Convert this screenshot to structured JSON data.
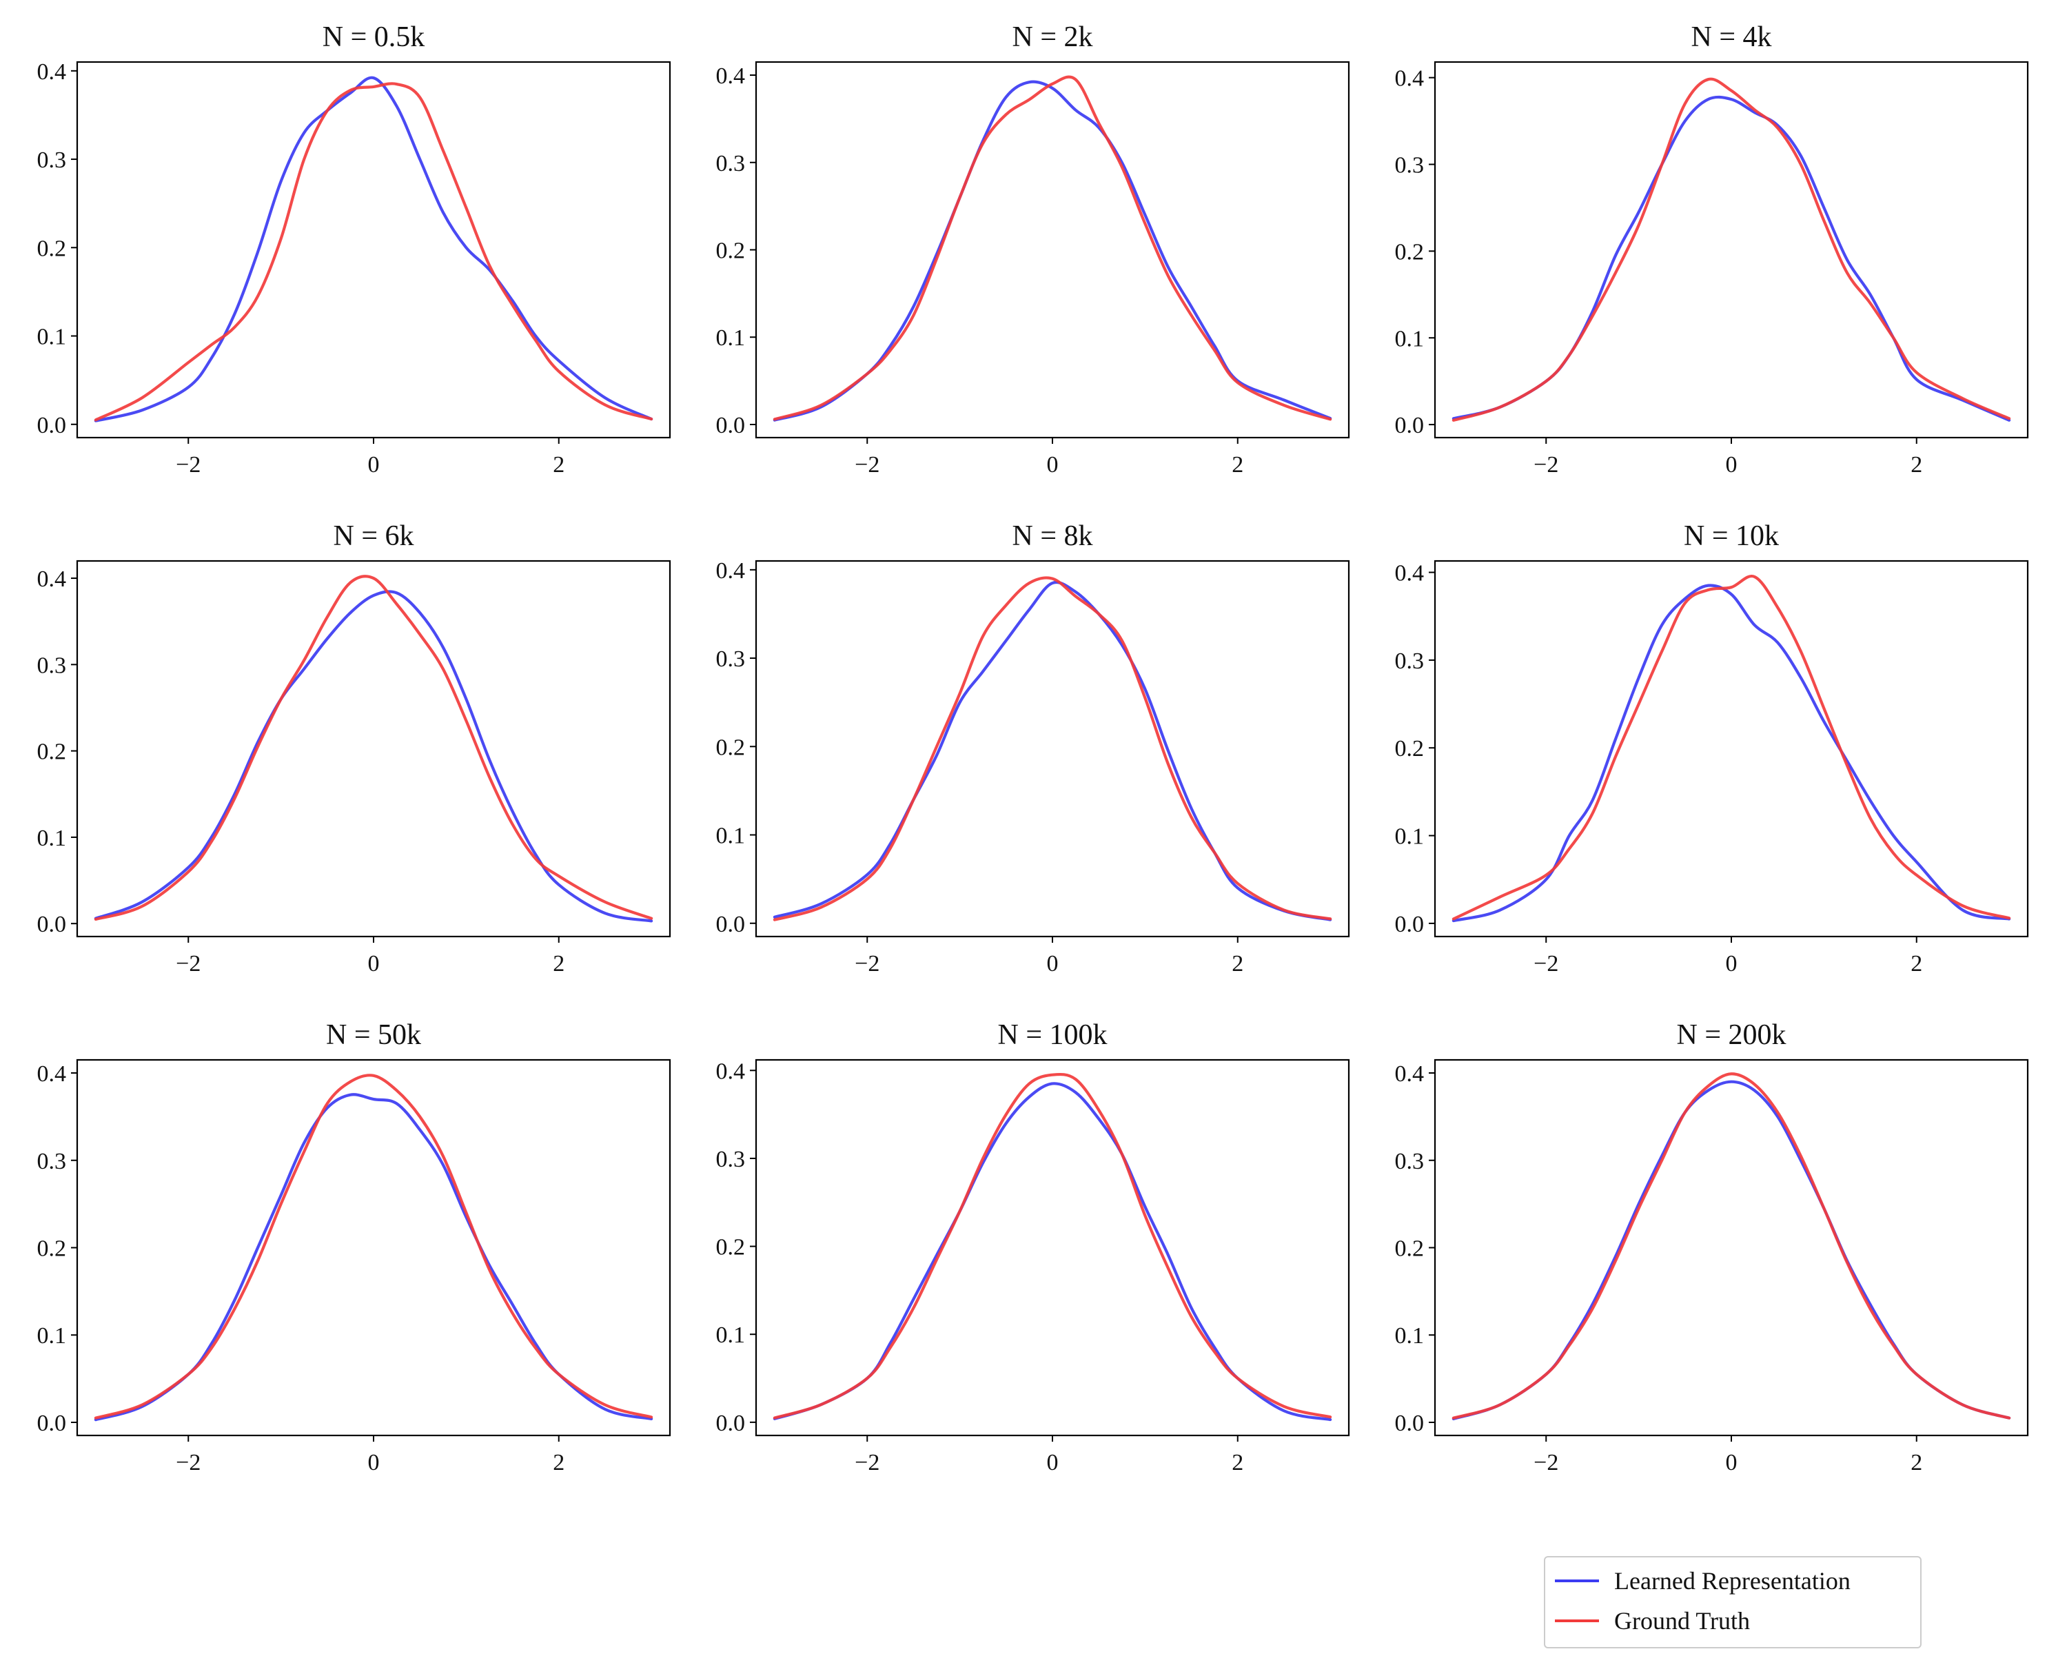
{
  "colors": {
    "learned": "#3b3bf2",
    "truth": "#f23b3b",
    "axis": "#000000",
    "text": "#111111"
  },
  "legend": {
    "learned_label": "Learned Representation",
    "truth_label": "Ground Truth"
  },
  "chart_data": [
    {
      "type": "line",
      "title": "N = 0.5k",
      "x": [
        -3,
        -2.5,
        -2,
        -1.75,
        -1.5,
        -1.25,
        -1,
        -0.75,
        -0.5,
        -0.25,
        0,
        0.25,
        0.5,
        0.75,
        1,
        1.25,
        1.5,
        1.75,
        2,
        2.5,
        3
      ],
      "series": [
        {
          "name": "Learned Representation",
          "values": [
            0.004,
            0.016,
            0.042,
            0.075,
            0.125,
            0.195,
            0.275,
            0.33,
            0.355,
            0.375,
            0.392,
            0.36,
            0.3,
            0.24,
            0.2,
            0.175,
            0.14,
            0.1,
            0.072,
            0.03,
            0.006
          ]
        },
        {
          "name": "Ground Truth",
          "values": [
            0.005,
            0.03,
            0.07,
            0.09,
            0.11,
            0.145,
            0.21,
            0.3,
            0.355,
            0.378,
            0.382,
            0.385,
            0.37,
            0.31,
            0.245,
            0.18,
            0.135,
            0.095,
            0.06,
            0.022,
            0.006
          ]
        }
      ],
      "xlim": [
        -3.2,
        3.2
      ],
      "ylim": [
        -0.015,
        0.41
      ],
      "xticks": [
        -2,
        0,
        2
      ],
      "yticks": [
        0.0,
        0.1,
        0.2,
        0.3,
        0.4
      ]
    },
    {
      "type": "line",
      "title": "N = 2k",
      "x": [
        -3,
        -2.5,
        -2,
        -1.75,
        -1.5,
        -1.25,
        -1,
        -0.75,
        -0.5,
        -0.25,
        0,
        0.25,
        0.5,
        0.75,
        1,
        1.25,
        1.5,
        1.75,
        2,
        2.5,
        3
      ],
      "series": [
        {
          "name": "Learned Representation",
          "values": [
            0.005,
            0.02,
            0.058,
            0.09,
            0.135,
            0.195,
            0.26,
            0.325,
            0.375,
            0.392,
            0.385,
            0.36,
            0.34,
            0.3,
            0.24,
            0.18,
            0.135,
            0.09,
            0.05,
            0.028,
            0.007
          ]
        },
        {
          "name": "Ground Truth",
          "values": [
            0.006,
            0.022,
            0.058,
            0.085,
            0.125,
            0.19,
            0.26,
            0.322,
            0.355,
            0.372,
            0.39,
            0.395,
            0.345,
            0.295,
            0.23,
            0.17,
            0.125,
            0.085,
            0.048,
            0.022,
            0.006
          ]
        }
      ],
      "xlim": [
        -3.2,
        3.2
      ],
      "ylim": [
        -0.015,
        0.415
      ],
      "xticks": [
        -2,
        0,
        2
      ],
      "yticks": [
        0.0,
        0.1,
        0.2,
        0.3,
        0.4
      ]
    },
    {
      "type": "line",
      "title": "N = 4k",
      "x": [
        -3,
        -2.5,
        -2,
        -1.75,
        -1.5,
        -1.25,
        -1,
        -0.75,
        -0.5,
        -0.25,
        0,
        0.25,
        0.5,
        0.75,
        1,
        1.25,
        1.5,
        1.75,
        2,
        2.5,
        3
      ],
      "series": [
        {
          "name": "Learned Representation",
          "values": [
            0.007,
            0.02,
            0.05,
            0.08,
            0.13,
            0.195,
            0.245,
            0.3,
            0.35,
            0.375,
            0.375,
            0.36,
            0.345,
            0.31,
            0.25,
            0.19,
            0.15,
            0.1,
            0.052,
            0.028,
            0.005
          ]
        },
        {
          "name": "Ground Truth",
          "values": [
            0.005,
            0.02,
            0.05,
            0.08,
            0.125,
            0.175,
            0.23,
            0.3,
            0.37,
            0.398,
            0.385,
            0.363,
            0.342,
            0.3,
            0.235,
            0.175,
            0.14,
            0.1,
            0.06,
            0.03,
            0.007
          ]
        }
      ],
      "xlim": [
        -3.2,
        3.2
      ],
      "ylim": [
        -0.015,
        0.418
      ],
      "xticks": [
        -2,
        0,
        2
      ],
      "yticks": [
        0.0,
        0.1,
        0.2,
        0.3,
        0.4
      ]
    },
    {
      "type": "line",
      "title": "N = 6k",
      "x": [
        -3,
        -2.5,
        -2,
        -1.75,
        -1.5,
        -1.25,
        -1,
        -0.75,
        -0.5,
        -0.25,
        0,
        0.25,
        0.5,
        0.75,
        1,
        1.25,
        1.5,
        1.75,
        2,
        2.5,
        3
      ],
      "series": [
        {
          "name": "Learned Representation",
          "values": [
            0.006,
            0.025,
            0.065,
            0.1,
            0.15,
            0.21,
            0.26,
            0.295,
            0.33,
            0.36,
            0.38,
            0.383,
            0.36,
            0.32,
            0.26,
            0.19,
            0.13,
            0.08,
            0.045,
            0.012,
            0.003
          ]
        },
        {
          "name": "Ground Truth",
          "values": [
            0.005,
            0.02,
            0.06,
            0.095,
            0.145,
            0.205,
            0.26,
            0.305,
            0.355,
            0.395,
            0.4,
            0.37,
            0.335,
            0.295,
            0.235,
            0.17,
            0.115,
            0.075,
            0.055,
            0.025,
            0.006
          ]
        }
      ],
      "xlim": [
        -3.2,
        3.2
      ],
      "ylim": [
        -0.015,
        0.42
      ],
      "xticks": [
        -2,
        0,
        2
      ],
      "yticks": [
        0.0,
        0.1,
        0.2,
        0.3,
        0.4
      ]
    },
    {
      "type": "line",
      "title": "N = 8k",
      "x": [
        -3,
        -2.5,
        -2,
        -1.75,
        -1.5,
        -1.25,
        -1,
        -0.75,
        -0.5,
        -0.25,
        0,
        0.25,
        0.5,
        0.75,
        1,
        1.25,
        1.5,
        1.75,
        2,
        2.5,
        3
      ],
      "series": [
        {
          "name": "Learned Representation",
          "values": [
            0.007,
            0.022,
            0.055,
            0.09,
            0.14,
            0.19,
            0.25,
            0.285,
            0.32,
            0.355,
            0.385,
            0.375,
            0.35,
            0.315,
            0.265,
            0.195,
            0.13,
            0.08,
            0.04,
            0.014,
            0.004
          ]
        },
        {
          "name": "Ground Truth",
          "values": [
            0.004,
            0.018,
            0.05,
            0.085,
            0.14,
            0.2,
            0.26,
            0.325,
            0.36,
            0.385,
            0.39,
            0.37,
            0.35,
            0.32,
            0.255,
            0.18,
            0.12,
            0.08,
            0.045,
            0.015,
            0.005
          ]
        }
      ],
      "xlim": [
        -3.2,
        3.2
      ],
      "ylim": [
        -0.015,
        0.41
      ],
      "xticks": [
        -2,
        0,
        2
      ],
      "yticks": [
        0.0,
        0.1,
        0.2,
        0.3,
        0.4
      ]
    },
    {
      "type": "line",
      "title": "N = 10k",
      "x": [
        -3,
        -2.5,
        -2,
        -1.75,
        -1.5,
        -1.25,
        -1,
        -0.75,
        -0.5,
        -0.25,
        0,
        0.25,
        0.5,
        0.75,
        1,
        1.25,
        1.5,
        1.75,
        2,
        2.5,
        3
      ],
      "series": [
        {
          "name": "Learned Representation",
          "values": [
            0.003,
            0.015,
            0.05,
            0.1,
            0.14,
            0.21,
            0.28,
            0.34,
            0.37,
            0.385,
            0.375,
            0.34,
            0.32,
            0.28,
            0.23,
            0.185,
            0.14,
            0.1,
            0.07,
            0.015,
            0.005
          ]
        },
        {
          "name": "Ground Truth",
          "values": [
            0.005,
            0.03,
            0.055,
            0.085,
            0.125,
            0.19,
            0.25,
            0.31,
            0.365,
            0.38,
            0.383,
            0.395,
            0.36,
            0.31,
            0.245,
            0.18,
            0.12,
            0.08,
            0.055,
            0.02,
            0.006
          ]
        }
      ],
      "xlim": [
        -3.2,
        3.2
      ],
      "ylim": [
        -0.015,
        0.413
      ],
      "xticks": [
        -2,
        0,
        2
      ],
      "yticks": [
        0.0,
        0.1,
        0.2,
        0.3,
        0.4
      ]
    },
    {
      "type": "line",
      "title": "N = 50k",
      "x": [
        -3,
        -2.5,
        -2,
        -1.75,
        -1.5,
        -1.25,
        -1,
        -0.75,
        -0.5,
        -0.25,
        0,
        0.25,
        0.5,
        0.75,
        1,
        1.25,
        1.5,
        1.75,
        2,
        2.5,
        3
      ],
      "series": [
        {
          "name": "Learned Representation",
          "values": [
            0.003,
            0.018,
            0.055,
            0.09,
            0.14,
            0.2,
            0.26,
            0.32,
            0.36,
            0.375,
            0.37,
            0.365,
            0.335,
            0.295,
            0.235,
            0.18,
            0.135,
            0.09,
            0.055,
            0.015,
            0.004
          ]
        },
        {
          "name": "Ground Truth",
          "values": [
            0.005,
            0.02,
            0.055,
            0.085,
            0.13,
            0.185,
            0.25,
            0.31,
            0.365,
            0.39,
            0.397,
            0.38,
            0.35,
            0.305,
            0.24,
            0.175,
            0.125,
            0.085,
            0.055,
            0.02,
            0.006
          ]
        }
      ],
      "xlim": [
        -3.2,
        3.2
      ],
      "ylim": [
        -0.015,
        0.415
      ],
      "xticks": [
        -2,
        0,
        2
      ],
      "yticks": [
        0.0,
        0.1,
        0.2,
        0.3,
        0.4
      ]
    },
    {
      "type": "line",
      "title": "N = 100k",
      "x": [
        -3,
        -2.5,
        -2,
        -1.75,
        -1.5,
        -1.25,
        -1,
        -0.75,
        -0.5,
        -0.25,
        0,
        0.25,
        0.5,
        0.75,
        1,
        1.25,
        1.5,
        1.75,
        2,
        2.5,
        3
      ],
      "series": [
        {
          "name": "Learned Representation",
          "values": [
            0.004,
            0.02,
            0.05,
            0.09,
            0.14,
            0.19,
            0.24,
            0.295,
            0.34,
            0.37,
            0.385,
            0.375,
            0.345,
            0.305,
            0.245,
            0.19,
            0.13,
            0.085,
            0.05,
            0.013,
            0.003
          ]
        },
        {
          "name": "Ground Truth",
          "values": [
            0.005,
            0.02,
            0.05,
            0.085,
            0.13,
            0.185,
            0.24,
            0.3,
            0.35,
            0.385,
            0.395,
            0.39,
            0.355,
            0.305,
            0.235,
            0.175,
            0.12,
            0.08,
            0.05,
            0.018,
            0.006
          ]
        }
      ],
      "xlim": [
        -3.2,
        3.2
      ],
      "ylim": [
        -0.015,
        0.412
      ],
      "xticks": [
        -2,
        0,
        2
      ],
      "yticks": [
        0.0,
        0.1,
        0.2,
        0.3,
        0.4
      ]
    },
    {
      "type": "line",
      "title": "N = 200k",
      "x": [
        -3,
        -2.5,
        -2,
        -1.75,
        -1.5,
        -1.25,
        -1,
        -0.75,
        -0.5,
        -0.25,
        0,
        0.25,
        0.5,
        0.75,
        1,
        1.25,
        1.5,
        1.75,
        2,
        2.5,
        3
      ],
      "series": [
        {
          "name": "Learned Representation",
          "values": [
            0.004,
            0.02,
            0.055,
            0.09,
            0.135,
            0.19,
            0.25,
            0.305,
            0.355,
            0.38,
            0.39,
            0.38,
            0.35,
            0.3,
            0.245,
            0.185,
            0.135,
            0.09,
            0.055,
            0.02,
            0.005
          ]
        },
        {
          "name": "Ground Truth",
          "values": [
            0.005,
            0.02,
            0.055,
            0.088,
            0.13,
            0.185,
            0.245,
            0.3,
            0.355,
            0.385,
            0.399,
            0.387,
            0.355,
            0.305,
            0.245,
            0.183,
            0.13,
            0.088,
            0.055,
            0.02,
            0.005
          ]
        }
      ],
      "xlim": [
        -3.2,
        3.2
      ],
      "ylim": [
        -0.015,
        0.415
      ],
      "xticks": [
        -2,
        0,
        2
      ],
      "yticks": [
        0.0,
        0.1,
        0.2,
        0.3,
        0.4
      ]
    }
  ]
}
